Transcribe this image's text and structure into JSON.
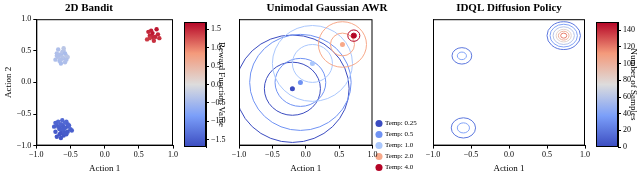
{
  "chart_data": [
    {
      "type": "scatter",
      "title": "2D Bandit",
      "x_label": "Action 1",
      "y_label": "Action 2",
      "xlim": [
        -1,
        1
      ],
      "ylim": [
        -1,
        1
      ],
      "xticks": [
        {
          "value": -1,
          "label": "−1.0"
        },
        {
          "value": -0.5,
          "label": "−0.5"
        },
        {
          "value": 0,
          "label": "0.0"
        },
        {
          "value": 0.5,
          "label": "0.5"
        },
        {
          "value": 1,
          "label": "1.0"
        }
      ],
      "yticks": [
        {
          "value": -1,
          "label": "−1.0"
        },
        {
          "value": -0.5,
          "label": "−0.5"
        },
        {
          "value": 0,
          "label": "0.0"
        },
        {
          "value": 0.5,
          "label": "0.5"
        },
        {
          "value": 1,
          "label": "1.0"
        }
      ],
      "grid": false,
      "points": {
        "x": [
          0.62,
          0.66,
          0.7,
          0.74,
          0.78,
          0.68,
          0.72,
          0.64,
          0.76,
          0.7,
          0.8,
          0.66,
          -0.72,
          -0.68,
          -0.64,
          -0.6,
          -0.56,
          -0.7,
          -0.66,
          -0.62,
          -0.58,
          -0.54,
          -0.68,
          -0.64,
          -0.6,
          -0.56,
          -0.66,
          -0.62,
          -0.58,
          -0.7,
          -0.6,
          -0.64,
          -0.74,
          -0.7,
          -0.66,
          -0.62,
          -0.58,
          -0.54,
          -0.5,
          -0.72,
          -0.68,
          -0.64,
          -0.6,
          -0.56,
          -0.52,
          -0.7,
          -0.66,
          -0.62,
          -0.58,
          -0.54,
          -0.68,
          -0.64,
          -0.6,
          -0.56,
          -0.64,
          -0.6,
          -0.72,
          -0.48,
          -0.58,
          -0.66,
          -0.62,
          -0.54
        ],
        "y": [
          0.68,
          0.74,
          0.78,
          0.72,
          0.76,
          0.82,
          0.66,
          0.8,
          0.84,
          0.72,
          0.7,
          0.7,
          0.36,
          0.4,
          0.44,
          0.38,
          0.42,
          0.46,
          0.34,
          0.48,
          0.32,
          0.4,
          0.52,
          0.3,
          0.5,
          0.36,
          0.44,
          0.4,
          0.46,
          0.42,
          0.54,
          0.36,
          -0.7,
          -0.66,
          -0.72,
          -0.68,
          -0.64,
          -0.7,
          -0.74,
          -0.78,
          -0.62,
          -0.8,
          -0.76,
          -0.82,
          -0.68,
          -0.86,
          -0.74,
          -0.6,
          -0.72,
          -0.78,
          -0.7,
          -0.66,
          -0.84,
          -0.62,
          -0.88,
          -0.7,
          -0.64,
          -0.76,
          -0.8,
          -0.82,
          -0.74,
          -0.66
        ],
        "values": [
          1.4,
          1.5,
          1.6,
          1.5,
          1.5,
          1.55,
          1.45,
          1.5,
          1.6,
          1.5,
          1.45,
          1.4,
          -0.4,
          -0.35,
          -0.45,
          -0.4,
          -0.3,
          -0.4,
          -0.45,
          -0.35,
          -0.4,
          -0.3,
          -0.4,
          -0.45,
          -0.35,
          -0.4,
          -0.4,
          -0.35,
          -0.45,
          -0.4,
          -0.3,
          -0.4,
          -1.5,
          -1.45,
          -1.55,
          -1.5,
          -1.4,
          -1.5,
          -1.45,
          -1.55,
          -1.4,
          -1.6,
          -1.5,
          -1.55,
          -1.45,
          -1.6,
          -1.5,
          -1.4,
          -1.5,
          -1.55,
          -1.5,
          -1.45,
          -1.6,
          -1.4,
          -1.6,
          -1.5,
          -1.45,
          -1.5,
          -1.55,
          -1.6,
          -1.5,
          -1.45
        ]
      },
      "colorbar": {
        "title": "Reward Function Value",
        "range": [
          -1.7,
          1.7
        ],
        "ticks": [
          {
            "value": -1.5,
            "label": "−1.5"
          },
          {
            "value": -1,
            "label": "−1.0"
          },
          {
            "value": -0.5,
            "label": "−0.5"
          },
          {
            "value": 0,
            "label": "0.0"
          },
          {
            "value": 0.5,
            "label": "0.5"
          },
          {
            "value": 1,
            "label": "1.0"
          },
          1.5
        ]
      }
    },
    {
      "type": "ellipse",
      "title": "Unimodal Gaussian AWR",
      "x_label": "Action 1",
      "xlim": [
        -1,
        1
      ],
      "ylim": [
        -1,
        1
      ],
      "xticks": [
        {
          "value": -1,
          "label": "−1.0"
        },
        {
          "value": -0.5,
          "label": "−0.5"
        },
        {
          "value": 0,
          "label": "0.0"
        },
        {
          "value": 0.5,
          "label": "0.5"
        },
        {
          "value": 1,
          "label": "1.0"
        }
      ],
      "tick_labels": "x",
      "grid": false,
      "legend": "right",
      "series": [
        {
          "name": "Temp: 0.25",
          "color": "#3b4cc0",
          "x": -0.2,
          "y": -0.1,
          "radii": [
            0.42,
            0.85
          ]
        },
        {
          "name": "Temp: 0.5",
          "color": "#6f92f3",
          "x": -0.08,
          "y": 0.0,
          "radii": [
            0.38,
            0.76
          ]
        },
        {
          "name": "Temp: 1.0",
          "color": "#aac7fd",
          "x": 0.1,
          "y": 0.3,
          "radii": [
            0.3,
            0.6
          ]
        },
        {
          "name": "Temp: 2.0",
          "color": "#f7a889",
          "x": 0.55,
          "y": 0.6,
          "radii": [
            0.18,
            0.36
          ]
        },
        {
          "name": "Temp: 4.0",
          "color": "#b40426",
          "x": 0.72,
          "y": 0.74,
          "radii": [
            0.04,
            0.09
          ]
        }
      ]
    },
    {
      "type": "contour",
      "title": "IDQL Diffusion Policy",
      "x_label": "Action 1",
      "xlim": [
        -1,
        1
      ],
      "ylim": [
        -1,
        1
      ],
      "xticks": [
        {
          "value": -1,
          "label": "−1.0"
        },
        {
          "value": -0.5,
          "label": "−0.5"
        },
        {
          "value": 0,
          "label": "0.0"
        },
        {
          "value": 0.5,
          "label": "0.5"
        },
        {
          "value": 1,
          "label": "1.0"
        }
      ],
      "tick_labels": "x",
      "grid": false,
      "contours": [
        {
          "x": 0.72,
          "y": 0.74,
          "levels": [
            20,
            40,
            60,
            80,
            100,
            120
          ],
          "radii": [
            0.22,
            0.18,
            0.14,
            0.1,
            0.07,
            0.04
          ]
        },
        {
          "x": -0.62,
          "y": 0.42,
          "levels": [
            20,
            40
          ],
          "radii": [
            0.13,
            0.06
          ]
        },
        {
          "x": -0.6,
          "y": -0.72,
          "levels": [
            20,
            40
          ],
          "radii": [
            0.16,
            0.08
          ]
        }
      ],
      "colorbar": {
        "title": "Number of Samples",
        "range": [
          0,
          150
        ],
        "ticks": [
          0,
          20,
          40,
          60,
          80,
          100,
          120,
          140
        ]
      }
    }
  ]
}
